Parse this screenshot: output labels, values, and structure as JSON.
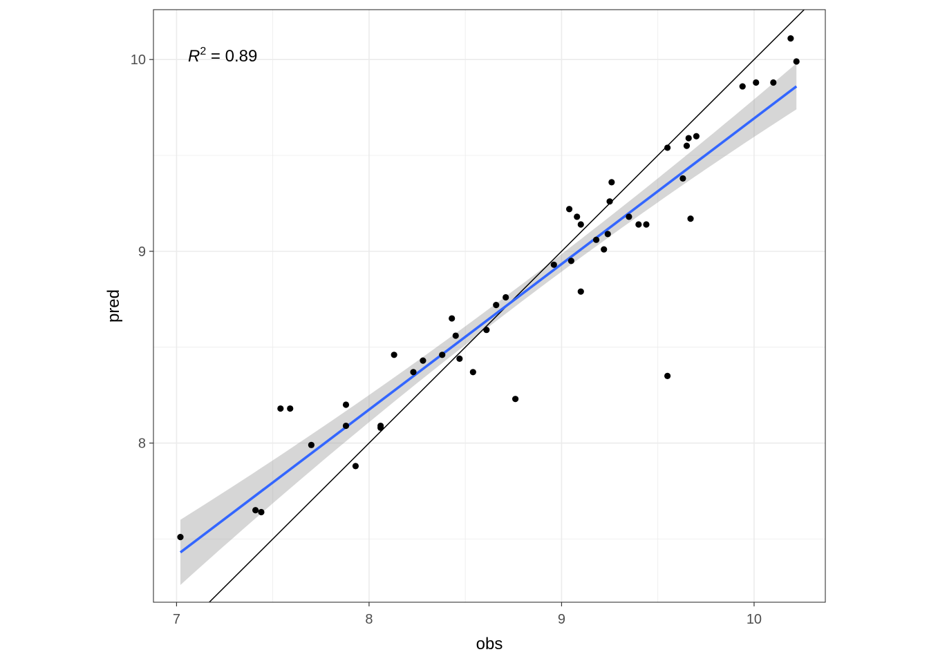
{
  "chart_data": {
    "type": "scatter",
    "xlabel": "obs",
    "ylabel": "pred",
    "xlim": [
      6.88,
      10.37
    ],
    "ylim": [
      7.17,
      10.26
    ],
    "x_ticks": [
      7,
      8,
      9,
      10
    ],
    "y_ticks": [
      8,
      9,
      10
    ],
    "x_tick_labels": [
      "7",
      "8",
      "9",
      "10"
    ],
    "y_tick_labels": [
      "8",
      "9",
      "10"
    ],
    "grid": true,
    "annotation": {
      "prefix": "R",
      "superscript": "2",
      "text": " = 0.89",
      "value": 0.89
    },
    "identity_line": {
      "slope": 1,
      "intercept": 0
    },
    "fit": {
      "method": "lm",
      "x_range": [
        7.02,
        10.22
      ],
      "y_start": 7.43,
      "y_end": 9.86,
      "ci_lower": [
        7.26,
        9.74
      ],
      "ci_upper": [
        7.6,
        9.98
      ],
      "ci_low_mid": [
        8.69
      ],
      "ci_up_mid": [
        8.78
      ],
      "x_mid": [
        8.73
      ]
    },
    "colors": {
      "points": "#000000",
      "fit_line": "#3366FF",
      "ci_band": "#999999",
      "grid": "#ebebeb",
      "border": "#333333"
    },
    "points": [
      [
        7.02,
        7.51
      ],
      [
        7.41,
        7.65
      ],
      [
        7.44,
        7.64
      ],
      [
        7.54,
        8.18
      ],
      [
        7.59,
        8.18
      ],
      [
        7.7,
        7.99
      ],
      [
        7.88,
        8.2
      ],
      [
        7.88,
        8.09
      ],
      [
        7.93,
        7.88
      ],
      [
        8.06,
        8.09
      ],
      [
        8.06,
        8.08
      ],
      [
        8.13,
        8.46
      ],
      [
        8.23,
        8.37
      ],
      [
        8.28,
        8.43
      ],
      [
        8.38,
        8.46
      ],
      [
        8.43,
        8.65
      ],
      [
        8.45,
        8.56
      ],
      [
        8.47,
        8.44
      ],
      [
        8.54,
        8.37
      ],
      [
        8.61,
        8.59
      ],
      [
        8.66,
        8.72
      ],
      [
        8.71,
        8.76
      ],
      [
        8.76,
        8.23
      ],
      [
        8.96,
        8.93
      ],
      [
        9.04,
        9.22
      ],
      [
        9.05,
        8.95
      ],
      [
        9.08,
        9.18
      ],
      [
        9.1,
        9.14
      ],
      [
        9.1,
        8.79
      ],
      [
        9.18,
        9.06
      ],
      [
        9.22,
        9.01
      ],
      [
        9.24,
        9.09
      ],
      [
        9.25,
        9.26
      ],
      [
        9.26,
        9.36
      ],
      [
        9.35,
        9.18
      ],
      [
        9.4,
        9.14
      ],
      [
        9.44,
        9.14
      ],
      [
        9.55,
        9.54
      ],
      [
        9.55,
        8.35
      ],
      [
        9.63,
        9.38
      ],
      [
        9.65,
        9.55
      ],
      [
        9.66,
        9.59
      ],
      [
        9.67,
        9.17
      ],
      [
        9.7,
        9.6
      ],
      [
        9.94,
        9.86
      ],
      [
        10.01,
        9.88
      ],
      [
        10.1,
        9.88
      ],
      [
        10.19,
        10.11
      ],
      [
        10.22,
        9.99
      ]
    ]
  }
}
